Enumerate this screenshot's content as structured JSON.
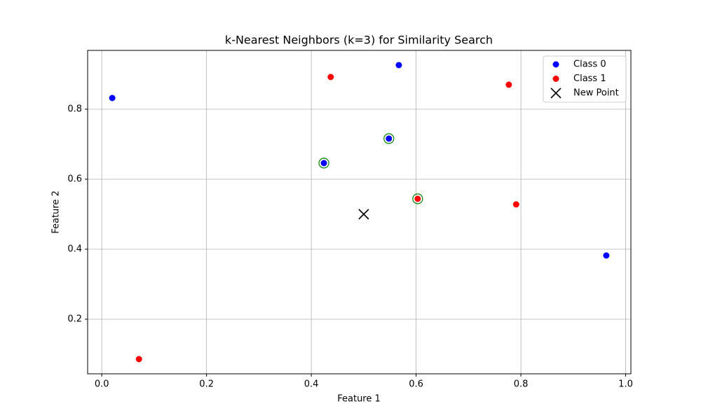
{
  "chart_data": {
    "type": "scatter",
    "title": "k-Nearest Neighbors (k=3) for Similarity Search",
    "x_label": "Feature 1",
    "y_label": "Feature 2",
    "xlim": [
      -0.027,
      1.01
    ],
    "ylim": [
      0.044,
      0.968
    ],
    "xticks": [
      {
        "value": 0,
        "label": "0.0"
      },
      0.2,
      0.4,
      0.6,
      0.8,
      {
        "value": 1,
        "label": "1.0"
      }
    ],
    "yticks": [
      0.2,
      0.4,
      0.6,
      0.8
    ],
    "grid": true,
    "legend": "upper right",
    "series": [
      {
        "name": "Class 0",
        "color": "blue",
        "marker": "circle",
        "x": [
          0.02,
          0.567,
          0.548,
          0.424,
          0.963
        ],
        "y": [
          0.832,
          0.926,
          0.716,
          0.646,
          0.382
        ]
      },
      {
        "name": "Class 1",
        "color": "red",
        "marker": "circle",
        "x": [
          0.437,
          0.777,
          0.603,
          0.791,
          0.071
        ],
        "y": [
          0.892,
          0.87,
          0.544,
          0.528,
          0.086
        ]
      },
      {
        "name": "New Point",
        "color": "black",
        "marker": "x",
        "x": [
          0.5
        ],
        "y": [
          0.5
        ]
      }
    ],
    "neighbors": {
      "color": "green",
      "x": [
        0.548,
        0.424,
        0.603
      ],
      "y": [
        0.716,
        0.646,
        0.544
      ]
    }
  }
}
